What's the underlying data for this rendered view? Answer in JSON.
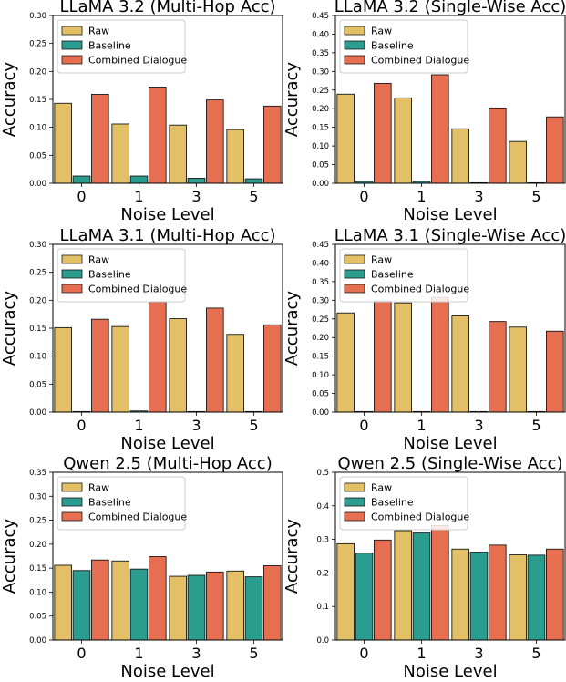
{
  "colors": {
    "Raw": "#e3c066",
    "Baseline": "#2a9d8f",
    "Combined Dialogue": "#e76f51",
    "edge": "#1a1a1a"
  },
  "legend": [
    "Raw",
    "Baseline",
    "Combined Dialogue"
  ],
  "chart_data": [
    {
      "type": "bar",
      "title": "LLaMA 3.2 (Multi-Hop Acc)",
      "xlabel": "Noise Level",
      "ylabel": "Accuracy",
      "categories": [
        "0",
        "1",
        "3",
        "5"
      ],
      "ylim": [
        0,
        0.3
      ],
      "yticks": [
        "0.00",
        "0.05",
        "0.10",
        "0.15",
        "0.20",
        "0.25",
        "0.30"
      ],
      "series": [
        {
          "name": "Raw",
          "values": [
            0.143,
            0.106,
            0.104,
            0.096
          ]
        },
        {
          "name": "Baseline",
          "values": [
            0.013,
            0.013,
            0.009,
            0.008
          ]
        },
        {
          "name": "Combined Dialogue",
          "values": [
            0.159,
            0.172,
            0.149,
            0.138
          ]
        }
      ]
    },
    {
      "type": "bar",
      "title": "LLaMA 3.2 (Single-Wise Acc)",
      "xlabel": "Noise Level",
      "ylabel": "Accuracy",
      "categories": [
        "0",
        "1",
        "3",
        "5"
      ],
      "ylim": [
        0,
        0.45
      ],
      "yticks": [
        "0.00",
        "0.05",
        "0.10",
        "0.15",
        "0.20",
        "0.25",
        "0.30",
        "0.35",
        "0.40",
        "0.45"
      ],
      "series": [
        {
          "name": "Raw",
          "values": [
            0.239,
            0.229,
            0.146,
            0.112
          ]
        },
        {
          "name": "Baseline",
          "values": [
            0.005,
            0.005,
            0.0,
            0.0
          ]
        },
        {
          "name": "Combined Dialogue",
          "values": [
            0.268,
            0.291,
            0.202,
            0.178
          ]
        }
      ]
    },
    {
      "type": "bar",
      "title": "LLaMA 3.1 (Multi-Hop Acc)",
      "xlabel": "Noise Level",
      "ylabel": "Accuracy",
      "categories": [
        "0",
        "1",
        "3",
        "5"
      ],
      "ylim": [
        0,
        0.3
      ],
      "yticks": [
        "0.00",
        "0.05",
        "0.10",
        "0.15",
        "0.20",
        "0.25",
        "0.30"
      ],
      "series": [
        {
          "name": "Raw",
          "values": [
            0.151,
            0.153,
            0.167,
            0.139
          ]
        },
        {
          "name": "Baseline",
          "values": [
            0.001,
            0.002,
            0.001,
            0.001
          ]
        },
        {
          "name": "Combined Dialogue",
          "values": [
            0.166,
            0.197,
            0.186,
            0.156
          ]
        }
      ]
    },
    {
      "type": "bar",
      "title": "LLaMA 3.1 (Single-Wise Acc)",
      "xlabel": "Noise Level",
      "ylabel": "Accuracy",
      "categories": [
        "0",
        "1",
        "3",
        "5"
      ],
      "ylim": [
        0,
        0.45
      ],
      "yticks": [
        "0.00",
        "0.05",
        "0.10",
        "0.15",
        "0.20",
        "0.25",
        "0.30",
        "0.35",
        "0.40",
        "0.45"
      ],
      "series": [
        {
          "name": "Raw",
          "values": [
            0.266,
            0.293,
            0.258,
            0.228
          ]
        },
        {
          "name": "Baseline",
          "values": [
            0.001,
            0.001,
            0.001,
            0.001
          ]
        },
        {
          "name": "Combined Dialogue",
          "values": [
            0.298,
            0.308,
            0.243,
            0.217
          ]
        }
      ]
    },
    {
      "type": "bar",
      "title": "Qwen 2.5 (Multi-Hop Acc)",
      "xlabel": "Noise Level",
      "ylabel": "Accuracy",
      "categories": [
        "0",
        "1",
        "3",
        "5"
      ],
      "ylim": [
        0,
        0.35
      ],
      "yticks": [
        "0.00",
        "0.05",
        "0.10",
        "0.15",
        "0.20",
        "0.25",
        "0.30",
        "0.35"
      ],
      "series": [
        {
          "name": "Raw",
          "values": [
            0.156,
            0.165,
            0.133,
            0.144
          ]
        },
        {
          "name": "Baseline",
          "values": [
            0.145,
            0.148,
            0.135,
            0.132
          ]
        },
        {
          "name": "Combined Dialogue",
          "values": [
            0.167,
            0.174,
            0.142,
            0.155
          ]
        }
      ]
    },
    {
      "type": "bar",
      "title": "Qwen 2.5 (Single-Wise Acc)",
      "xlabel": "Noise Level",
      "ylabel": "Accuracy",
      "categories": [
        "0",
        "1",
        "3",
        "5"
      ],
      "ylim": [
        0,
        0.5
      ],
      "yticks": [
        "0.0",
        "0.1",
        "0.2",
        "0.3",
        "0.4",
        "0.5"
      ],
      "series": [
        {
          "name": "Raw",
          "values": [
            0.287,
            0.326,
            0.271,
            0.254
          ]
        },
        {
          "name": "Baseline",
          "values": [
            0.259,
            0.319,
            0.262,
            0.253
          ]
        },
        {
          "name": "Combined Dialogue",
          "values": [
            0.298,
            0.341,
            0.283,
            0.271
          ]
        }
      ]
    }
  ]
}
